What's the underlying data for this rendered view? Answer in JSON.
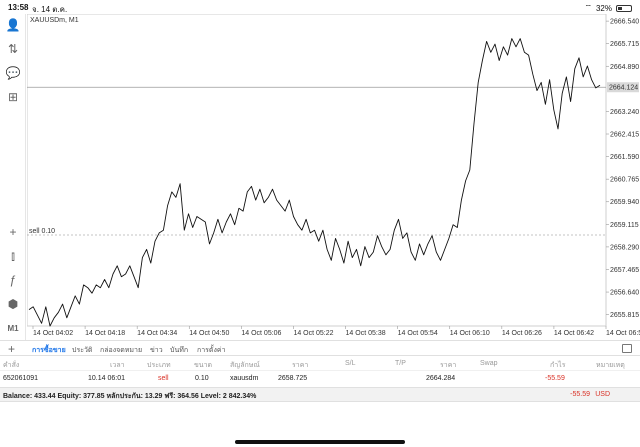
{
  "status": {
    "time": "13:58",
    "date": "จ. 14 ต.ค.",
    "battery": "32%",
    "battery_level": 0.32
  },
  "colors": {
    "accent": "#1a73e8",
    "loss": "#d93025",
    "grid": "#ececec"
  },
  "toolbar": {
    "items": [
      {
        "name": "account-icon",
        "glyph": "👤"
      },
      {
        "name": "trade-icon",
        "glyph": "⇅"
      },
      {
        "name": "chat-icon",
        "glyph": "💬"
      },
      {
        "name": "new-chart-icon",
        "glyph": "⊞"
      },
      {
        "name": "crosshair-icon",
        "glyph": "+"
      },
      {
        "name": "candles-icon",
        "glyph": "⫾"
      },
      {
        "name": "indicators-icon",
        "glyph": "ƒ"
      },
      {
        "name": "objects-icon",
        "glyph": "⬢"
      },
      {
        "name": "timeframe-label",
        "glyph": "M1"
      }
    ]
  },
  "chart_data": {
    "type": "line",
    "symbol_label": "XAUUSDm, M1",
    "y_ticks": [
      "2666.540",
      "2665.715",
      "2664.890",
      "2664.124",
      "2663.240",
      "2662.415",
      "2661.590",
      "2660.765",
      "2659.940",
      "2659.115",
      "2658.290",
      "2657.465",
      "2656.640",
      "2655.815"
    ],
    "ylim": [
      2655.4,
      2666.8
    ],
    "current_price": 2664.124,
    "current_price_label": "2664.124",
    "order_line": {
      "label": "sell 0.10",
      "price": 2658.725
    },
    "x_ticks": [
      "14 Oct 04:02",
      "14 Oct 04:18",
      "14 Oct 04:34",
      "14 Oct 04:50",
      "14 Oct 05:06",
      "14 Oct 05:22",
      "14 Oct 05:38",
      "14 Oct 05:54",
      "14 Oct 06:10",
      "14 Oct 06:26",
      "14 Oct 06:42",
      "14 Oct 06:58"
    ],
    "series": [
      {
        "values": [
          2656.0,
          2656.1,
          2655.8,
          2655.5,
          2656.1,
          2655.4,
          2655.7,
          2655.9,
          2656.2,
          2655.7,
          2656.1,
          2656.5,
          2656.2,
          2656.9,
          2656.8,
          2656.6,
          2656.9,
          2656.8,
          2657.1,
          2656.8,
          2657.3,
          2657.6,
          2657.2,
          2657.3,
          2657.6,
          2657.2,
          2656.8,
          2657.9,
          2658.2,
          2657.7,
          2658.5,
          2658.8,
          2658.9,
          2659.8,
          2660.3,
          2660.1,
          2660.6,
          2658.9,
          2659.5,
          2659.0,
          2659.4,
          2659.3,
          2659.2,
          2658.4,
          2658.8,
          2659.3,
          2658.8,
          2659.2,
          2659.5,
          2659.1,
          2659.7,
          2659.6,
          2660.3,
          2660.5,
          2660.0,
          2660.4,
          2659.9,
          2660.1,
          2660.4,
          2660.0,
          2659.8,
          2659.6,
          2660.0,
          2659.4,
          2659.1,
          2658.9,
          2659.3,
          2658.8,
          2658.9,
          2658.5,
          2658.9,
          2658.2,
          2657.8,
          2658.6,
          2658.2,
          2657.7,
          2658.5,
          2657.9,
          2658.2,
          2657.6,
          2658.3,
          2657.9,
          2658.1,
          2658.7,
          2658.3,
          2658.0,
          2658.2,
          2658.9,
          2659.3,
          2658.6,
          2658.8,
          2658.1,
          2657.8,
          2658.4,
          2658.0,
          2658.4,
          2658.7,
          2658.1,
          2657.8,
          2658.2,
          2658.6,
          2659.1,
          2659.0,
          2660.0,
          2660.7,
          2661.1,
          2662.8,
          2664.3,
          2665.1,
          2665.8,
          2665.4,
          2665.7,
          2665.1,
          2665.6,
          2665.3,
          2665.9,
          2665.6,
          2665.9,
          2665.4,
          2665.3,
          2664.6,
          2664.0,
          2664.3,
          2663.5,
          2664.4,
          2663.3,
          2662.6,
          2663.9,
          2664.5,
          2663.6,
          2664.8,
          2665.2,
          2664.5,
          2664.9,
          2664.4,
          2664.1,
          2664.2
        ]
      }
    ]
  },
  "tabs": {
    "items": [
      {
        "label": "การซื้อขาย",
        "active": true
      },
      {
        "label": "ประวัติ",
        "active": false
      },
      {
        "label": "กล่องจดหมาย",
        "active": false
      },
      {
        "label": "ข่าว",
        "active": false
      },
      {
        "label": "บันทึก",
        "active": false
      },
      {
        "label": "การตั้งค่า",
        "active": false
      }
    ]
  },
  "table": {
    "headers": [
      "คำสั่ง",
      "เวลา",
      "ประเภท",
      "ขนาด",
      "สัญลักษณ์",
      "ราคา",
      "S/L",
      "T/P",
      "ราคา",
      "Swap",
      "กำไร",
      "หมายเหตุ"
    ],
    "row": {
      "order": "652061091",
      "time": "10.14 06:01",
      "type": "sell",
      "volume": "0.10",
      "symbol": "xauusdm",
      "open_price": "2658.725",
      "current_price": "2664.284",
      "profit": "-55.59"
    }
  },
  "balance": {
    "text": "Balance: 433.44  Equity: 377.85  หลักประกัน: 13.29  ฟรี: 364.56  Level: 2 842.34%",
    "profit": "-55.59",
    "currency": "USD"
  }
}
